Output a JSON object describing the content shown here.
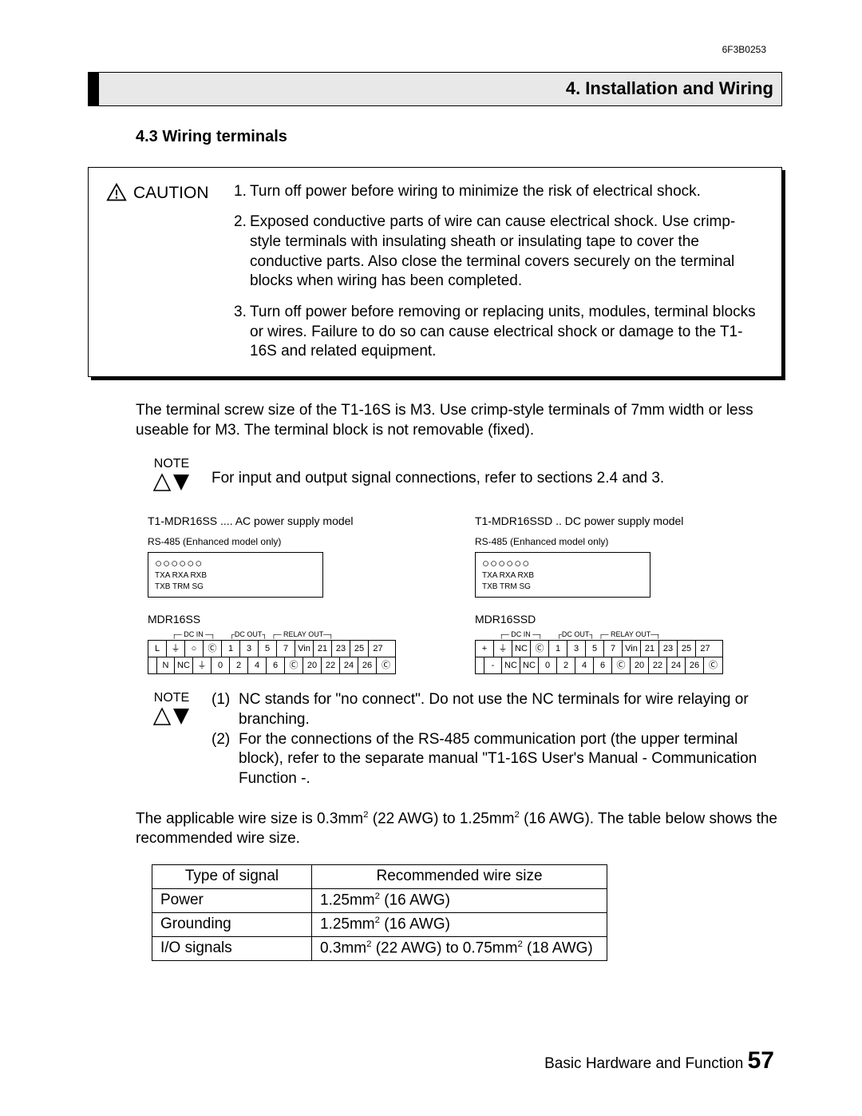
{
  "doc_id": "6F3B0253",
  "section_title": "4. Installation and Wiring",
  "subsection_title": "4.3  Wiring terminals",
  "caution_label": "CAUTION",
  "caution_items": {
    "n1": "1.",
    "t1": "Turn off power before wiring to minimize the risk of electrical shock.",
    "n2": "2.",
    "t2": "Exposed conductive parts of wire can cause electrical shock. Use crimp-style terminals with insulating sheath or insulating tape to cover the conductive parts. Also close the terminal covers securely on the terminal blocks when wiring has been completed.",
    "n3": "3.",
    "t3": "Turn off power before removing or replacing units, modules, terminal blocks or wires. Failure to do so can cause electrical shock or damage to the T1-16S and related equipment."
  },
  "para_screw": "The terminal screw size of the T1-16S is M3. Use crimp-style terminals of 7mm width or less useable for M3. The terminal block is not removable (fixed).",
  "note_label": "NOTE",
  "note1_text": "For input and output signal connections, refer to sections 2.4 and 3.",
  "diag_ac_title": "T1-MDR16SS .... AC power supply model",
  "diag_dc_title": "T1-MDR16SSD .. DC power supply model",
  "rs485_label": "RS-485 (Enhanced model only)",
  "rs_sig_top": "TXA    RXA    RXB",
  "rs_sig_bot": "   TXB    TRM    SG",
  "model_ac": "MDR16SS",
  "model_dc": "MDR16SSD",
  "bracket_labels": "┌─ DC IN ─┐       ┌DC OUT┐  ┌─ RELAY OUT─┐",
  "ac_row1": [
    "L",
    "⏚",
    "○",
    "Ⓒ",
    "1",
    "3",
    "5",
    "7",
    "Vin",
    "21",
    "23",
    "25",
    "27"
  ],
  "ac_row2": [
    "N",
    "NC",
    "⏚",
    "0",
    "2",
    "4",
    "6",
    "Ⓒ",
    "20",
    "22",
    "24",
    "26",
    "Ⓒ"
  ],
  "dc_row1": [
    "+",
    "⏚",
    "NC",
    "Ⓒ",
    "1",
    "3",
    "5",
    "7",
    "Vin",
    "21",
    "23",
    "25",
    "27"
  ],
  "dc_row2": [
    "-",
    "NC",
    "NC",
    "0",
    "2",
    "4",
    "6",
    "Ⓒ",
    "20",
    "22",
    "24",
    "26",
    "Ⓒ"
  ],
  "note2_n1": "(1)",
  "note2_t1": "NC stands for \"no connect\". Do not use the NC terminals for wire relaying or branching.",
  "note2_n2": "(2)",
  "note2_t2": "For the connections of the RS-485 communication port (the upper terminal block), refer to the separate manual \"T1-16S User's Manual - Communication Function -.",
  "para_wire_a": "The applicable wire size is 0.3mm",
  "para_wire_b": " (22 AWG) to 1.25mm",
  "para_wire_c": " (16 AWG). The table below shows the recommended wire size.",
  "table": {
    "h1": "Type of signal",
    "h2": "Recommended wire size",
    "r1c1": "Power",
    "r1c2a": "1.25mm",
    "r1c2b": " (16 AWG)",
    "r2c1": "Grounding",
    "r2c2a": "1.25mm",
    "r2c2b": " (16 AWG)",
    "r3c1": "I/O signals",
    "r3c2a": "0.3mm",
    "r3c2b": " (22 AWG) to 0.75mm",
    "r3c2c": " (18 AWG)"
  },
  "footer_text": "Basic Hardware and Function",
  "page_number": "57"
}
